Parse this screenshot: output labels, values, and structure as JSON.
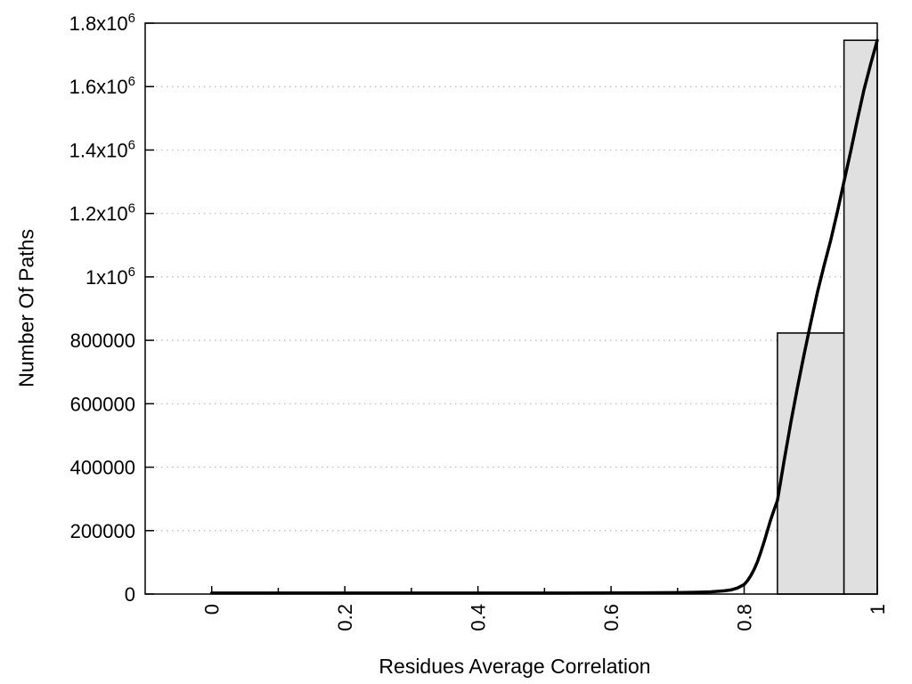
{
  "page": {
    "background": "#ffffff"
  },
  "chart_data": {
    "type": "bar",
    "subtype": "histogram-with-fit-line",
    "title": "",
    "xlabel": "Residues Average Correlation",
    "ylabel": "Number Of Paths",
    "xlim": [
      -0.1,
      1.0
    ],
    "ylim": [
      0,
      1800000
    ],
    "grid": {
      "horizontal": true,
      "vertical": false,
      "style": "dotted",
      "color": "#b8b8b8"
    },
    "legend": "none",
    "x_ticks": {
      "major": [
        {
          "v": 0,
          "label": "0"
        },
        {
          "v": 0.2,
          "label": "0.2"
        },
        {
          "v": 0.4,
          "label": "0.4"
        },
        {
          "v": 0.6,
          "label": "0.6"
        },
        {
          "v": 0.8,
          "label": "0.8"
        },
        {
          "v": 1,
          "label": "1"
        }
      ],
      "minor": [
        0.1,
        0.3,
        0.5,
        0.7,
        0.9
      ]
    },
    "y_ticks": [
      {
        "v": 0,
        "label": "0"
      },
      {
        "v": 200000,
        "label": "200000"
      },
      {
        "v": 400000,
        "label": "400000"
      },
      {
        "v": 600000,
        "label": "600000"
      },
      {
        "v": 800000,
        "label": "800000"
      },
      {
        "v": 1000000,
        "label": "1x10^6"
      },
      {
        "v": 1200000,
        "label": "1.2x10^6"
      },
      {
        "v": 1400000,
        "label": "1.4x10^6"
      },
      {
        "v": 1600000,
        "label": "1.6x10^6"
      },
      {
        "v": 1800000,
        "label": "1.8x10^6"
      }
    ],
    "bars": {
      "name": "histogram",
      "fill": "#e0e0e0",
      "stroke": "#0a0a0a",
      "items": [
        {
          "x0": 0.85,
          "x1": 0.95,
          "value": 823000
        },
        {
          "x0": 0.95,
          "x1": 1.0,
          "value": 1746000
        }
      ]
    },
    "line_series": {
      "name": "fit-curve",
      "color": "#000000",
      "stroke_width": 3.5,
      "points": [
        [
          0.0,
          3000
        ],
        [
          0.1,
          3000
        ],
        [
          0.2,
          3000
        ],
        [
          0.3,
          3000
        ],
        [
          0.4,
          3000
        ],
        [
          0.5,
          3200
        ],
        [
          0.6,
          3500
        ],
        [
          0.65,
          3800
        ],
        [
          0.7,
          4500
        ],
        [
          0.73,
          5500
        ],
        [
          0.75,
          7000
        ],
        [
          0.77,
          10000
        ],
        [
          0.78,
          13000
        ],
        [
          0.79,
          19000
        ],
        [
          0.8,
          30000
        ],
        [
          0.805,
          42000
        ],
        [
          0.81,
          58000
        ],
        [
          0.815,
          78000
        ],
        [
          0.82,
          102000
        ],
        [
          0.825,
          132000
        ],
        [
          0.83,
          165000
        ],
        [
          0.835,
          200000
        ],
        [
          0.84,
          235000
        ],
        [
          0.845,
          266000
        ],
        [
          0.85,
          295000
        ],
        [
          0.86,
          420000
        ],
        [
          0.87,
          540000
        ],
        [
          0.88,
          650000
        ],
        [
          0.89,
          755000
        ],
        [
          0.9,
          855000
        ],
        [
          0.91,
          950000
        ],
        [
          0.92,
          1035000
        ],
        [
          0.93,
          1115000
        ],
        [
          0.94,
          1205000
        ],
        [
          0.95,
          1300000
        ],
        [
          0.96,
          1395000
        ],
        [
          0.97,
          1495000
        ],
        [
          0.98,
          1590000
        ],
        [
          0.99,
          1670000
        ],
        [
          1.0,
          1746000
        ]
      ]
    },
    "colors": {
      "axis": "#000000",
      "text": "#000000",
      "background": "#ffffff"
    }
  }
}
